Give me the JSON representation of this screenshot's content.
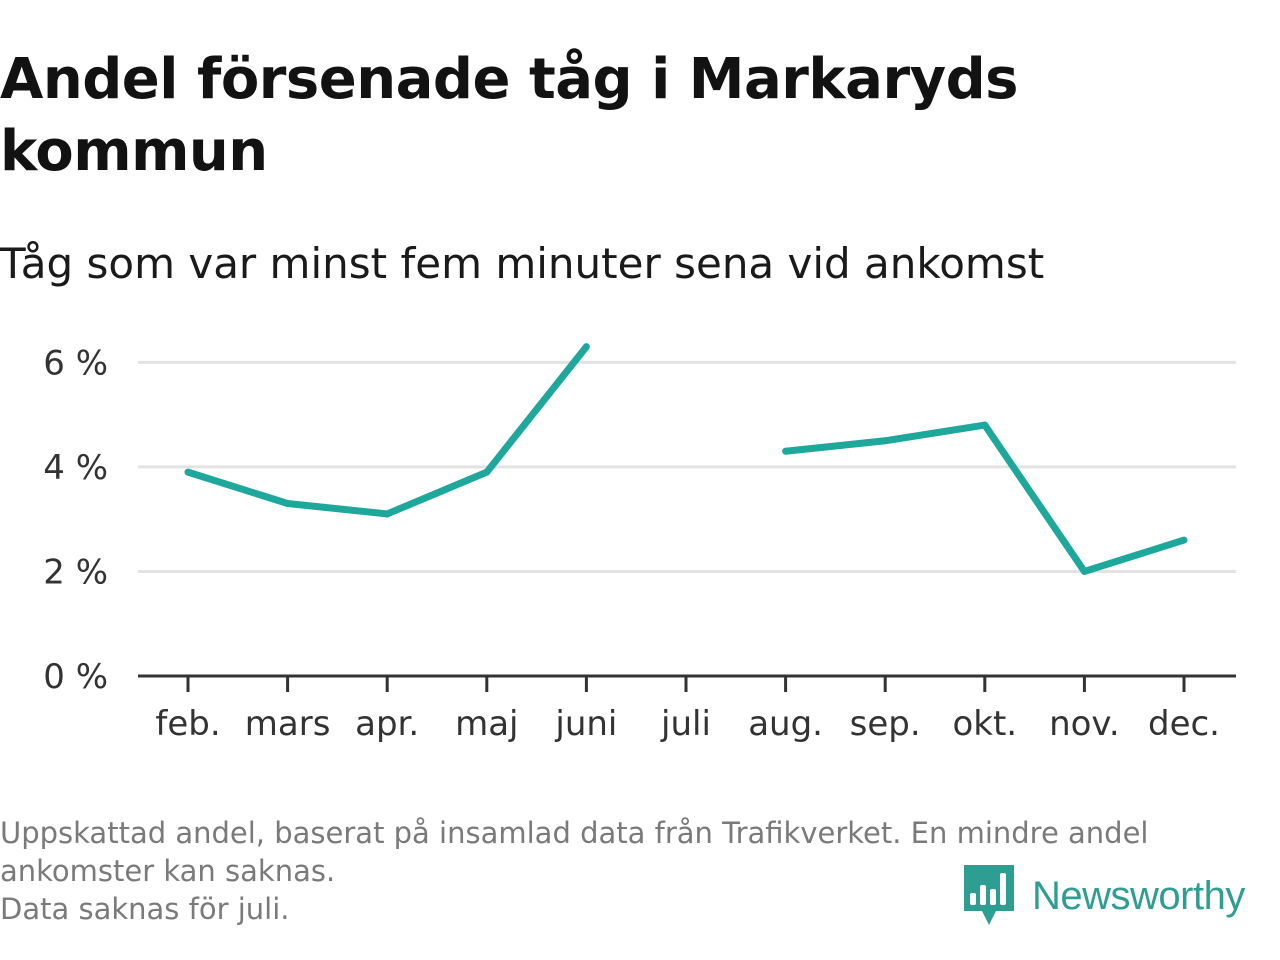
{
  "title": "Andel försenade tåg i Markaryds kommun",
  "subtitle": "Tåg som var minst fem minuter sena vid ankomst",
  "footer": {
    "note_line1": "Uppskattad andel, baserat på insamlad data från Trafikverket. En mindre andel",
    "note_line2": "ankomster kan saknas.",
    "note_line3": "Data saknas för juli."
  },
  "brand": {
    "name": "Newsworthy",
    "icon": "newsworthy-logo-icon",
    "color": "#2f9e92"
  },
  "chart_data": {
    "type": "line",
    "title": "Andel försenade tåg i Markaryds kommun",
    "subtitle": "Tåg som var minst fem minuter sena vid ankomst",
    "categories": [
      "feb.",
      "mars",
      "apr.",
      "maj",
      "juni",
      "juli",
      "aug.",
      "sep.",
      "okt.",
      "nov.",
      "dec."
    ],
    "series": [
      {
        "values": [
          3.9,
          3.3,
          3.1,
          3.9,
          6.3,
          null,
          4.3,
          4.5,
          4.8,
          2.0,
          2.6
        ],
        "color": "#1ea89b"
      }
    ],
    "yticks": [
      0,
      2,
      4,
      6
    ],
    "ytick_labels": [
      "0 %",
      "2 %",
      "4 %",
      "6 %"
    ],
    "ylim": [
      0,
      6.6
    ],
    "xlabel": "",
    "ylabel": "",
    "grid": true,
    "gridline_color": "#e3e3e3",
    "axis_color": "#333333"
  }
}
